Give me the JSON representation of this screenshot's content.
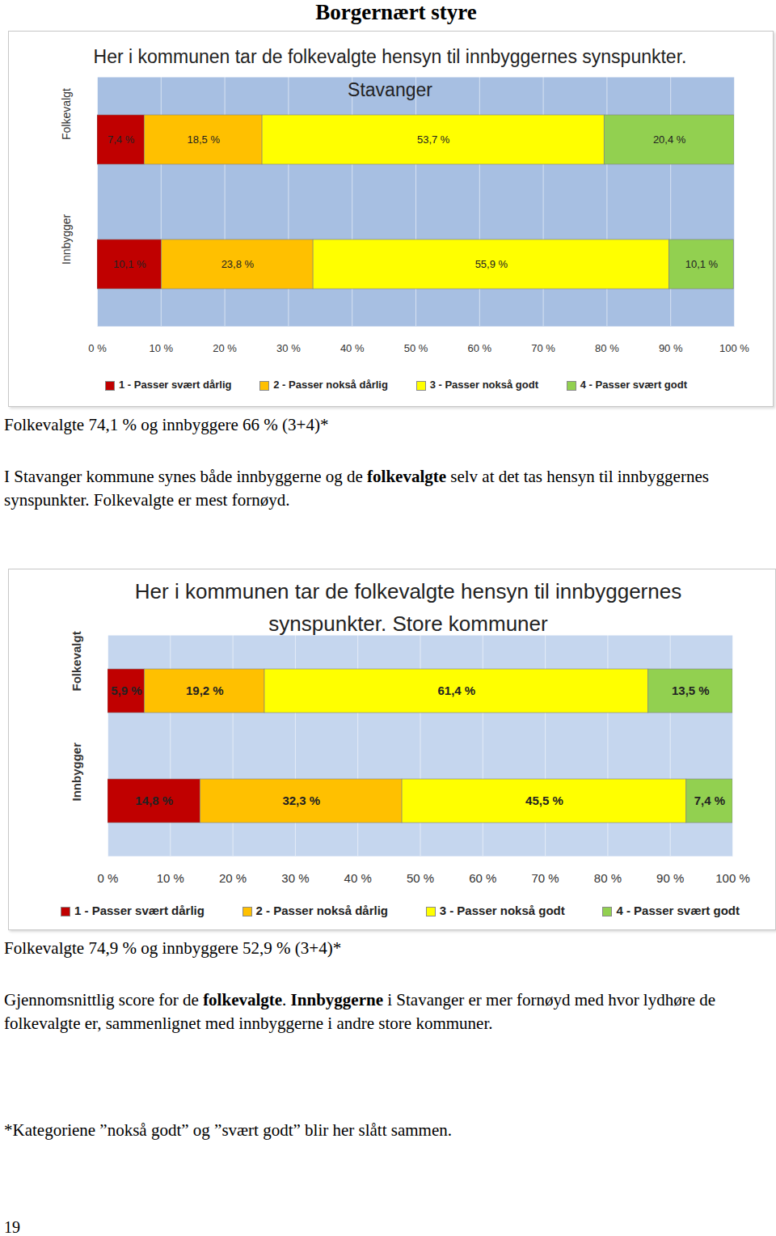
{
  "header": {
    "title": "Borgernært styre"
  },
  "chart_data": [
    {
      "type": "bar",
      "orientation": "horizontal",
      "stacked": true,
      "title": "Her i kommunen tar de folkevalgte hensyn til innbyggernes synspunkter.",
      "subtitle": "Stavanger",
      "categories": [
        "Folkevalgt",
        "Innbygger"
      ],
      "series": [
        {
          "name": "1 - Passer svært dårlig",
          "color": "#c00000",
          "values": [
            7.4,
            10.1
          ],
          "value_labels": [
            "7,4 %",
            "10,1 %"
          ]
        },
        {
          "name": "2 - Passer nokså dårlig",
          "color": "#ffc000",
          "values": [
            18.5,
            23.8
          ],
          "value_labels": [
            "18,5 %",
            "23,8 %"
          ]
        },
        {
          "name": "3 - Passer nokså godt",
          "color": "#ffff00",
          "values": [
            53.7,
            55.9
          ],
          "value_labels": [
            "53,7 %",
            "55,9 %"
          ]
        },
        {
          "name": "4 - Passer svært godt",
          "color": "#92d050",
          "values": [
            20.4,
            10.1
          ],
          "value_labels": [
            "20,4 %",
            "10,1 %"
          ]
        }
      ],
      "xlim": [
        0,
        100
      ],
      "xticks": [
        {
          "value": 0,
          "label": "0 %"
        },
        {
          "value": 10,
          "label": "10 %"
        },
        {
          "value": 20,
          "label": "20 %"
        },
        {
          "value": 30,
          "label": "30 %"
        },
        {
          "value": 40,
          "label": "40 %"
        },
        {
          "value": 50,
          "label": "50 %"
        },
        {
          "value": 60,
          "label": "60 %"
        },
        {
          "value": 70,
          "label": "70 %"
        },
        {
          "value": 80,
          "label": "80 %"
        },
        {
          "value": 90,
          "label": "90 %"
        },
        {
          "value": 100,
          "label": "100 %"
        }
      ],
      "grid": true,
      "data_labels": true,
      "legend": "bottom"
    },
    {
      "type": "bar",
      "orientation": "horizontal",
      "stacked": true,
      "title": "Her i kommunen tar de folkevalgte hensyn til innbyggernes synspunkter.",
      "subtitle": "Store kommuner",
      "categories": [
        "Folkevalgt",
        "Innbygger"
      ],
      "series": [
        {
          "name": "1 - Passer svært dårlig",
          "color": "#c00000",
          "values": [
            5.9,
            14.8
          ],
          "value_labels": [
            "5,9 %",
            "14,8 %"
          ]
        },
        {
          "name": "2 - Passer nokså dårlig",
          "color": "#ffc000",
          "values": [
            19.2,
            32.3
          ],
          "value_labels": [
            "19,2 %",
            "32,3 %"
          ]
        },
        {
          "name": "3 - Passer nokså godt",
          "color": "#ffff00",
          "values": [
            61.4,
            45.5
          ],
          "value_labels": [
            "61,4 %",
            "45,5 %"
          ]
        },
        {
          "name": "4 - Passer svært godt",
          "color": "#92d050",
          "values": [
            13.5,
            7.4
          ],
          "value_labels": [
            "13,5 %",
            "7,4 %"
          ]
        }
      ],
      "xlim": [
        0,
        100
      ],
      "xticks": [
        {
          "value": 0,
          "label": "0 %"
        },
        {
          "value": 10,
          "label": "10 %"
        },
        {
          "value": 20,
          "label": "20 %"
        },
        {
          "value": 30,
          "label": "30 %"
        },
        {
          "value": 40,
          "label": "40 %"
        },
        {
          "value": 50,
          "label": "50 %"
        },
        {
          "value": 60,
          "label": "60 %"
        },
        {
          "value": 70,
          "label": "70 %"
        },
        {
          "value": 80,
          "label": "80 %"
        },
        {
          "value": 90,
          "label": "90 %"
        },
        {
          "value": 100,
          "label": "100 %"
        }
      ],
      "grid": true,
      "data_labels": true,
      "legend": "bottom"
    }
  ],
  "sections": [
    {
      "summary": "Folkevalgte 74,1 % og innbyggere 66 % (3+4)*",
      "paragraph": [
        {
          "text": "I Stavanger kommune synes både innbyggerne og de "
        },
        {
          "text": "folkevalgte",
          "bold": true
        },
        {
          "text": " selv at det tas hensyn til innbyggernes synspunkter. Folkevalgte er mest fornøyd."
        }
      ]
    },
    {
      "summary": "Folkevalgte 74,9 % og innbyggere 52,9 % (3+4)*",
      "paragraph": [
        {
          "text": "Gjennomsnittlig score for de "
        },
        {
          "text": "folkevalgte",
          "bold": true
        },
        {
          "text": ". "
        },
        {
          "text": "Innbyggerne",
          "bold": true
        },
        {
          "text": " i Stavanger er mer fornøyd med hvor lydhøre de folkevalgte er, sammenlignet med innbyggerne i andre store kommuner."
        }
      ]
    }
  ],
  "footnote": "*Kategoriene ”nokså godt” og ”svært godt” blir her slått sammen.",
  "page_number": "19"
}
